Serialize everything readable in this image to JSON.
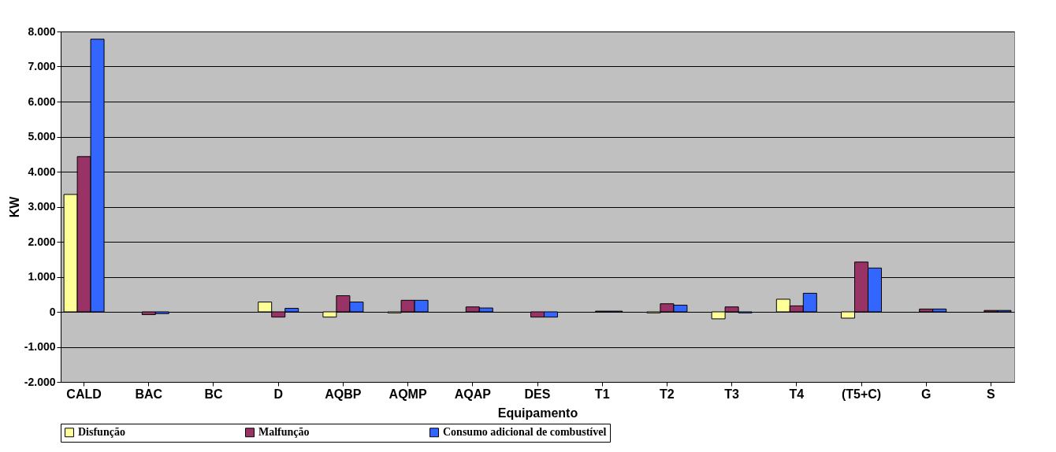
{
  "chart_data": {
    "type": "bar",
    "xlabel": "Equipamento",
    "ylabel": "KW",
    "categories": [
      "CALD",
      "BAC",
      "BC",
      "D",
      "AQBP",
      "AQMP",
      "AQAP",
      "DES",
      "T1",
      "T2",
      "T3",
      "T4",
      "(T5+C)",
      "G",
      "S"
    ],
    "series": [
      {
        "name": "Disfunção",
        "color": "#ffff99",
        "values": [
          3350,
          0,
          0,
          280,
          -150,
          -30,
          0,
          0,
          0,
          -30,
          -200,
          360,
          -180,
          0,
          0
        ]
      },
      {
        "name": "Malfunção",
        "color": "#993366",
        "values": [
          4430,
          -80,
          0,
          -150,
          460,
          330,
          140,
          -150,
          20,
          230,
          140,
          170,
          1420,
          80,
          40
        ]
      },
      {
        "name": "Consumo adicional de combustível",
        "color": "#3366ff",
        "values": [
          7780,
          -50,
          0,
          100,
          280,
          330,
          110,
          -150,
          20,
          190,
          -30,
          530,
          1250,
          80,
          40
        ]
      }
    ],
    "ylim": [
      -2000,
      8000
    ],
    "yticks": [
      {
        "value": -2000,
        "label": "-2.000"
      },
      {
        "value": -1000,
        "label": "-1.000"
      },
      0,
      {
        "value": 1000,
        "label": "1.000"
      },
      {
        "value": 2000,
        "label": "2.000"
      },
      {
        "value": 3000,
        "label": "3.000"
      },
      {
        "value": 4000,
        "label": "4.000"
      },
      {
        "value": 5000,
        "label": "5.000"
      },
      {
        "value": 6000,
        "label": "6.000"
      },
      {
        "value": 7000,
        "label": "7.000"
      },
      {
        "value": 8000,
        "label": "8.000"
      }
    ],
    "grid": "y",
    "legend": "bottom"
  }
}
